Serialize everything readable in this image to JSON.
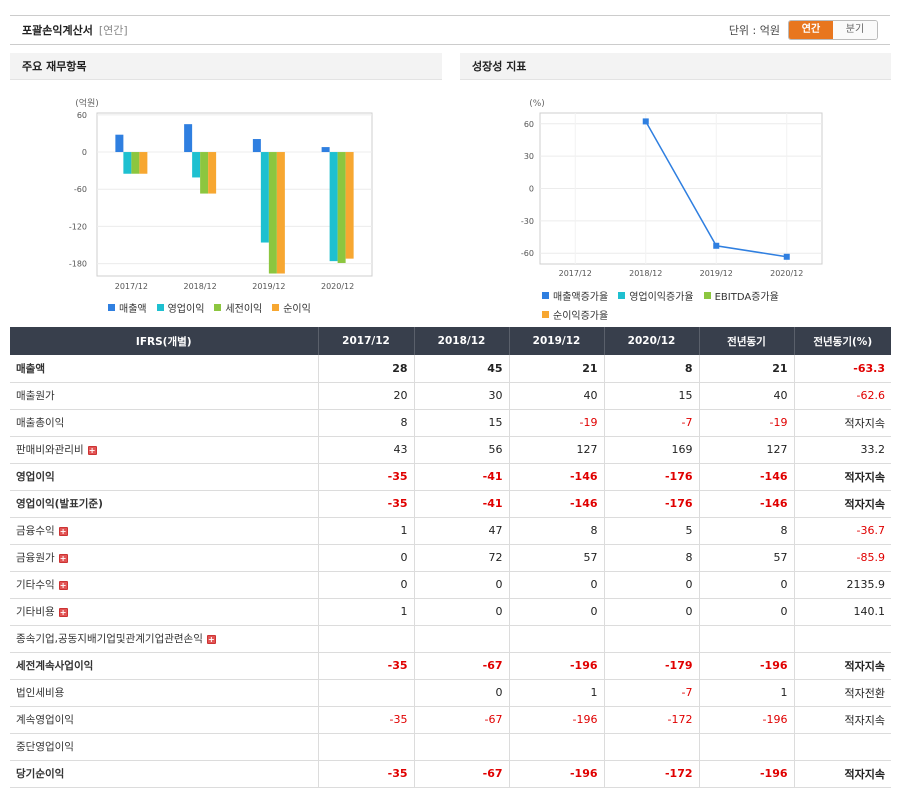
{
  "header": {
    "title": "포괄손익계산서",
    "subtitle": "[연간]",
    "unit_label": "단위 : 억원",
    "toggle_on": "연간",
    "toggle_off": "분기"
  },
  "left_panel": {
    "title": "주요 재무항목"
  },
  "right_panel": {
    "title": "성장성 지표"
  },
  "chart_data": [
    {
      "type": "bar",
      "ylabel": "(억원)",
      "categories": [
        "2017/12",
        "2018/12",
        "2019/12",
        "2020/12"
      ],
      "ylim": [
        -200,
        60
      ],
      "yticks": [
        60,
        0,
        -60,
        -120,
        -180
      ],
      "series": [
        {
          "name": "매출액",
          "color": "#2f7fe0",
          "values": [
            28,
            45,
            21,
            8
          ]
        },
        {
          "name": "영업이익",
          "color": "#1ec0d0",
          "values": [
            -35,
            -41,
            -146,
            -176
          ]
        },
        {
          "name": "세전이익",
          "color": "#8cc63f",
          "values": [
            -35,
            -67,
            -196,
            -179
          ]
        },
        {
          "name": "순이익",
          "color": "#f7a731",
          "values": [
            -35,
            -67,
            -196,
            -172
          ]
        }
      ],
      "grid": true,
      "legend": "bottom"
    },
    {
      "type": "line",
      "ylabel": "(%)",
      "categories": [
        "2017/12",
        "2018/12",
        "2019/12",
        "2020/12"
      ],
      "ylim": [
        -70,
        70
      ],
      "yticks": [
        60,
        30,
        0,
        -30,
        -60
      ],
      "series": [
        {
          "name": "매출액증가율",
          "color": "#2f7fe0",
          "values": [
            null,
            62.2,
            -53.1,
            -63.3
          ]
        },
        {
          "name": "영업이익증가율",
          "color": "#1ec0d0",
          "values": [
            null,
            null,
            null,
            null
          ]
        },
        {
          "name": "EBITDA증가율",
          "color": "#8cc63f",
          "values": [
            null,
            null,
            null,
            null
          ]
        },
        {
          "name": "순이익증가율",
          "color": "#f7a731",
          "values": [
            null,
            null,
            null,
            null
          ]
        }
      ],
      "grid": true,
      "legend": "bottom"
    }
  ],
  "table": {
    "headers": [
      "IFRS(개별)",
      "2017/12",
      "2018/12",
      "2019/12",
      "2020/12",
      "전년동기",
      "전년동기(%)"
    ],
    "rows": [
      {
        "label": "매출액",
        "plus": false,
        "bold": true,
        "cells": [
          "28",
          "45",
          "21",
          "8",
          "21",
          "-63.3"
        ]
      },
      {
        "label": "매출원가",
        "plus": false,
        "bold": false,
        "cells": [
          "20",
          "30",
          "40",
          "15",
          "40",
          "-62.6"
        ]
      },
      {
        "label": "매출총이익",
        "plus": false,
        "bold": false,
        "cells": [
          "8",
          "15",
          "-19",
          "-7",
          "-19",
          "적자지속"
        ]
      },
      {
        "label": "판매비와관리비",
        "plus": true,
        "bold": false,
        "cells": [
          "43",
          "56",
          "127",
          "169",
          "127",
          "33.2"
        ]
      },
      {
        "label": "영업이익",
        "plus": false,
        "bold": true,
        "cells": [
          "-35",
          "-41",
          "-146",
          "-176",
          "-146",
          "적자지속"
        ]
      },
      {
        "label": "영업이익(발표기준)",
        "plus": false,
        "bold": true,
        "cells": [
          "-35",
          "-41",
          "-146",
          "-176",
          "-146",
          "적자지속"
        ]
      },
      {
        "label": "금융수익",
        "plus": true,
        "bold": false,
        "cells": [
          "1",
          "47",
          "8",
          "5",
          "8",
          "-36.7"
        ]
      },
      {
        "label": "금융원가",
        "plus": true,
        "bold": false,
        "cells": [
          "0",
          "72",
          "57",
          "8",
          "57",
          "-85.9"
        ]
      },
      {
        "label": "기타수익",
        "plus": true,
        "bold": false,
        "cells": [
          "0",
          "0",
          "0",
          "0",
          "0",
          "2135.9"
        ]
      },
      {
        "label": "기타비용",
        "plus": true,
        "bold": false,
        "cells": [
          "1",
          "0",
          "0",
          "0",
          "0",
          "140.1"
        ]
      },
      {
        "label": "종속기업,공동지배기업및관계기업관련손익",
        "plus": true,
        "bold": false,
        "cells": [
          "",
          "",
          "",
          "",
          "",
          ""
        ]
      },
      {
        "label": "세전계속사업이익",
        "plus": false,
        "bold": true,
        "cells": [
          "-35",
          "-67",
          "-196",
          "-179",
          "-196",
          "적자지속"
        ]
      },
      {
        "label": "법인세비용",
        "plus": false,
        "bold": false,
        "cells": [
          "",
          "0",
          "1",
          "-7",
          "1",
          "적자전환"
        ]
      },
      {
        "label": "계속영업이익",
        "plus": false,
        "bold": false,
        "cells": [
          "-35",
          "-67",
          "-196",
          "-172",
          "-196",
          "적자지속"
        ]
      },
      {
        "label": "중단영업이익",
        "plus": false,
        "bold": false,
        "cells": [
          "",
          "",
          "",
          "",
          "",
          ""
        ]
      },
      {
        "label": "당기순이익",
        "plus": false,
        "bold": true,
        "cells": [
          "-35",
          "-67",
          "-196",
          "-172",
          "-196",
          "적자지속"
        ]
      }
    ]
  }
}
